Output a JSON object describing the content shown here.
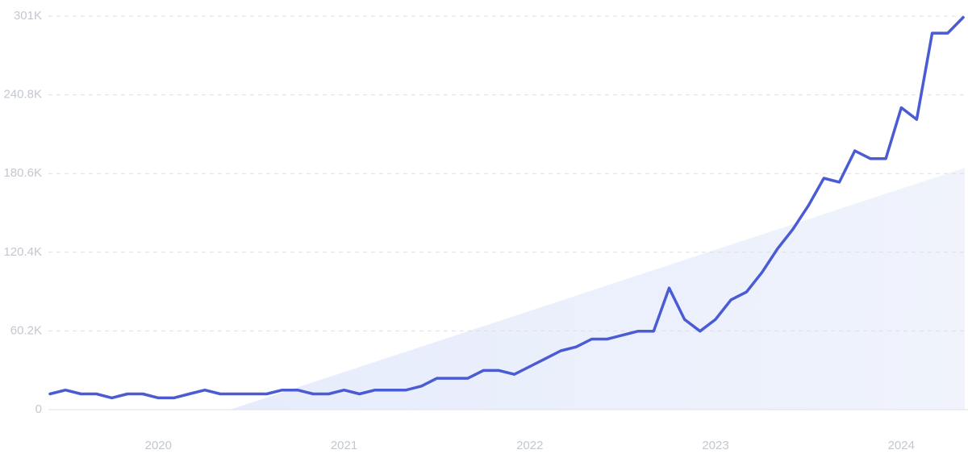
{
  "chart_data": {
    "type": "line",
    "categories": [
      null,
      null,
      null,
      null,
      null,
      null,
      null,
      "2020",
      null,
      null,
      null,
      null,
      null,
      null,
      null,
      null,
      null,
      null,
      null,
      "2021",
      null,
      null,
      null,
      null,
      null,
      null,
      null,
      null,
      null,
      null,
      null,
      "2022",
      null,
      null,
      null,
      null,
      null,
      null,
      null,
      null,
      null,
      null,
      null,
      "2023",
      null,
      null,
      null,
      null,
      null,
      null,
      null,
      null,
      null,
      null,
      null,
      "2024",
      null,
      null,
      null,
      null
    ],
    "series": [
      {
        "color": "#4a5bd3",
        "values": [
          12000,
          15000,
          12000,
          12000,
          9000,
          12000,
          12000,
          9000,
          9000,
          12000,
          15000,
          12000,
          12000,
          12000,
          12000,
          15000,
          15000,
          12000,
          12000,
          15000,
          12000,
          15000,
          15000,
          15000,
          18000,
          24000,
          24000,
          24000,
          30000,
          30000,
          27000,
          33000,
          39000,
          45000,
          48000,
          54000,
          54000,
          57000,
          60000,
          60000,
          93000,
          69000,
          60000,
          69000,
          84000,
          90000,
          105000,
          123000,
          138000,
          156000,
          177000,
          174000,
          198000,
          192000,
          192000,
          231000,
          222000,
          288000,
          288000,
          300000
        ]
      }
    ],
    "ylim": [
      0,
      301000
    ],
    "yticks": [
      0,
      {
        "value": 60200,
        "label": "60.2K"
      },
      {
        "value": 120400,
        "label": "120.4K"
      },
      {
        "value": 180600,
        "label": "180.6K"
      },
      {
        "value": 240800,
        "label": "240.8K"
      },
      {
        "value": 301000,
        "label": "301K"
      }
    ],
    "grid": true
  }
}
